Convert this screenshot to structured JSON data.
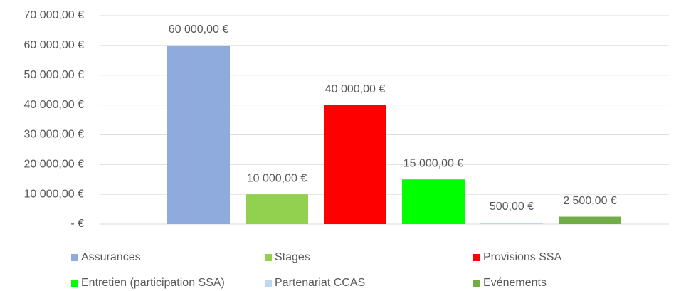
{
  "chart_data": {
    "type": "bar",
    "categories": [
      null
    ],
    "series": [
      {
        "name": "Assurances",
        "color": "#8faadc",
        "values": [
          60000
        ],
        "value_labels": [
          "60 000,00 €"
        ]
      },
      {
        "name": "Stages",
        "color": "#92d050",
        "values": [
          10000
        ],
        "value_labels": [
          "10 000,00 €"
        ]
      },
      {
        "name": "Provisions SSA",
        "color": "#ff0000",
        "values": [
          40000
        ],
        "value_labels": [
          "40 000,00 €"
        ]
      },
      {
        "name": "Entretien (participation SSA)",
        "color": "#00ff00",
        "values": [
          15000
        ],
        "value_labels": [
          "15 000,00 €"
        ]
      },
      {
        "name": "Partenariat CCAS",
        "color": "#bdd7ee",
        "values": [
          500
        ],
        "value_labels": [
          "500,00 €"
        ]
      },
      {
        "name": "Evénements",
        "color": "#70ad47",
        "values": [
          2500
        ],
        "value_labels": [
          "2 500,00 €"
        ]
      }
    ],
    "ylim": [
      0,
      70000
    ],
    "yticks": [
      {
        "value": 0,
        "label": "-   €"
      },
      {
        "value": 10000,
        "label": "10 000,00 €"
      },
      {
        "value": 20000,
        "label": "20 000,00 €"
      },
      {
        "value": 30000,
        "label": "30 000,00 €"
      },
      {
        "value": 40000,
        "label": "40 000,00 €"
      },
      {
        "value": 50000,
        "label": "50 000,00 €"
      },
      {
        "value": 60000,
        "label": "60 000,00 €"
      },
      {
        "value": 70000,
        "label": "70 000,00 €"
      }
    ],
    "grid": true,
    "legend": "bottom"
  }
}
